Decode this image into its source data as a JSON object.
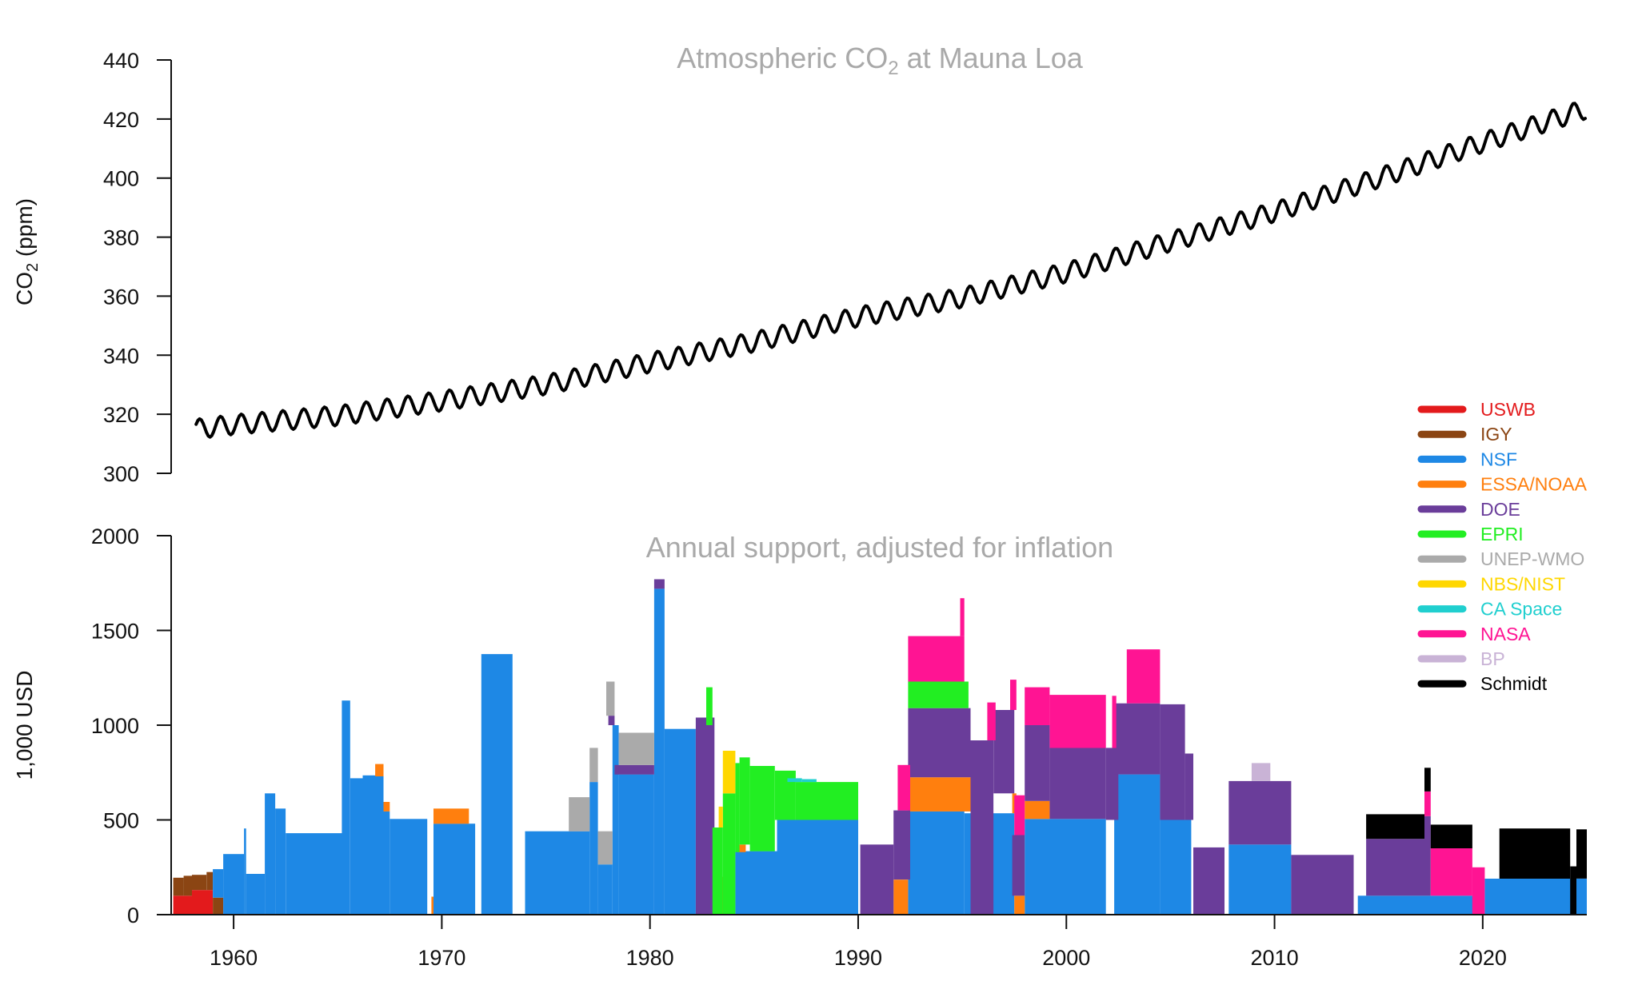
{
  "chart_data": [
    {
      "id": "co2",
      "type": "line",
      "title": "Atmospheric CO",
      "title_sub": "2",
      "title_rest": " at Mauna Loa",
      "ylabel": "CO",
      "ylabel_sub": "2",
      "ylabel_rest": "  (ppm)",
      "xlim": [
        1957,
        2025
      ],
      "ylim": [
        300,
        440
      ],
      "yticks": [
        300,
        320,
        340,
        360,
        380,
        400,
        420,
        440
      ],
      "series": [
        {
          "name": "Mauna Loa CO2 (monthly, seasonal cycle)",
          "color": "#000000",
          "start": 1958.2,
          "end": 2025.0,
          "step": 0.0833,
          "trend_anchors": [
            [
              1958.2,
              315
            ],
            [
              1960,
              316.5
            ],
            [
              1965,
              319.5
            ],
            [
              1970,
              324.5
            ],
            [
              1975,
              330
            ],
            [
              1980,
              337.5
            ],
            [
              1985,
              344.5
            ],
            [
              1990,
              353
            ],
            [
              1995,
              359.5
            ],
            [
              2000,
              368
            ],
            [
              2005,
              378.5
            ],
            [
              2010,
              388.5
            ],
            [
              2015,
              400
            ],
            [
              2020,
              412
            ],
            [
              2025,
              423.5
            ]
          ],
          "seasonal_amplitude_ppm": 3.3,
          "seasonal_peak_month_fraction": 0.37
        }
      ]
    },
    {
      "id": "funding",
      "type": "bar",
      "title": "Annual support, adjusted for inflation",
      "ylabel": "1,000 USD",
      "xlim": [
        1957,
        2025
      ],
      "ylim": [
        0,
        2000
      ],
      "yticks": [
        0,
        500,
        1000,
        1500,
        2000
      ],
      "xticks": [
        1960,
        1970,
        1980,
        1990,
        2000,
        2010,
        2020
      ],
      "xtick_labels": [
        "1960",
        "1970",
        "1980",
        "1990",
        "2000",
        "2010",
        "2020"
      ],
      "series": [
        {
          "name": "USWB",
          "color": "#e31a1c",
          "segments": [
            [
              1957.1,
              1958.0,
              0,
              100
            ],
            [
              1958.0,
              1959.0,
              0,
              130
            ]
          ]
        },
        {
          "name": "IGY",
          "color": "#8b4513",
          "segments": [
            [
              1957.1,
              1957.6,
              100,
              195
            ],
            [
              1957.6,
              1958.0,
              100,
              205
            ],
            [
              1958.0,
              1958.7,
              130,
              210
            ],
            [
              1958.7,
              1959.0,
              130,
              225
            ],
            [
              1959.0,
              1959.5,
              0,
              90
            ]
          ]
        },
        {
          "name": "NSF",
          "color": "#1e88e5",
          "segments": [
            [
              1959.0,
              1959.5,
              90,
              240
            ],
            [
              1959.5,
              1960.5,
              0,
              320
            ],
            [
              1960.5,
              1960.6,
              0,
              455
            ],
            [
              1960.6,
              1961.5,
              0,
              215
            ],
            [
              1961.5,
              1962.0,
              0,
              640
            ],
            [
              1962.0,
              1962.5,
              0,
              560
            ],
            [
              1962.5,
              1965.2,
              0,
              430
            ],
            [
              1965.2,
              1965.6,
              0,
              1130
            ],
            [
              1965.6,
              1966.2,
              0,
              720
            ],
            [
              1966.2,
              1967.2,
              0,
              735
            ],
            [
              1967.2,
              1967.5,
              0,
              545
            ],
            [
              1967.5,
              1969.3,
              0,
              505
            ],
            [
              1969.6,
              1971.6,
              0,
              480
            ],
            [
              1971.9,
              1973.4,
              0,
              1375
            ],
            [
              1974.0,
              1977.1,
              0,
              440
            ],
            [
              1977.1,
              1977.5,
              0,
              700
            ],
            [
              1977.5,
              1978.2,
              0,
              265
            ],
            [
              1978.2,
              1978.5,
              0,
              1000
            ],
            [
              1978.5,
              1980.2,
              0,
              740
            ],
            [
              1980.2,
              1980.7,
              0,
              1720
            ],
            [
              1980.7,
              1982.2,
              0,
              980
            ],
            [
              1984.1,
              1986.1,
              0,
              335
            ],
            [
              1986.1,
              1990.0,
              0,
              500
            ],
            [
              1992.4,
              1995.1,
              0,
              545
            ],
            [
              1995.1,
              1997.5,
              0,
              535
            ],
            [
              1998.0,
              2001.9,
              0,
              505
            ],
            [
              2002.3,
              2004.5,
              0,
              740
            ],
            [
              2004.5,
              2006.0,
              0,
              500
            ],
            [
              2007.8,
              2010.8,
              0,
              370
            ],
            [
              2014.0,
              2019.9,
              0,
              100
            ],
            [
              2020.1,
              2025.0,
              0,
              190
            ]
          ]
        },
        {
          "name": "ESSA/NOAA",
          "color": "#ff7f0e",
          "segments": [
            [
              1966.8,
              1967.2,
              730,
              795
            ],
            [
              1967.2,
              1967.5,
              545,
              595
            ],
            [
              1969.5,
              1969.6,
              0,
              95
            ],
            [
              1969.6,
              1971.3,
              480,
              560
            ],
            [
              1982.9,
              1984.0,
              0,
              200
            ],
            [
              1984.2,
              1984.6,
              330,
              370
            ],
            [
              1991.7,
              1992.4,
              0,
              185
            ],
            [
              1992.4,
              1995.4,
              545,
              725
            ],
            [
              1997.4,
              1997.6,
              535,
              640
            ],
            [
              1997.5,
              1998.0,
              0,
              100
            ],
            [
              1998.0,
              1999.2,
              505,
              600
            ]
          ]
        },
        {
          "name": "DOE",
          "color": "#6a3d9a",
          "segments": [
            [
              1978.0,
              1978.3,
              1000,
              1050
            ],
            [
              1978.3,
              1980.2,
              740,
              790
            ],
            [
              1980.2,
              1980.7,
              1720,
              1770
            ],
            [
              1982.2,
              1983.1,
              0,
              1040
            ],
            [
              1990.1,
              1991.7,
              0,
              370
            ],
            [
              1991.7,
              1992.5,
              185,
              550
            ],
            [
              1992.4,
              1995.4,
              725,
              1090
            ],
            [
              1995.4,
              1996.5,
              0,
              920
            ],
            [
              1996.5,
              1997.5,
              640,
              1080
            ],
            [
              1997.4,
              1998.0,
              100,
              420
            ],
            [
              1998.0,
              1999.2,
              600,
              1000
            ],
            [
              1999.2,
              2001.9,
              505,
              880
            ],
            [
              2001.9,
              2002.5,
              500,
              880
            ],
            [
              2002.3,
              2004.5,
              740,
              1115
            ],
            [
              2004.5,
              2005.7,
              500,
              1110
            ],
            [
              2005.7,
              2006.1,
              500,
              850
            ],
            [
              2006.1,
              2007.6,
              0,
              355
            ],
            [
              2007.8,
              2010.8,
              370,
              705
            ],
            [
              2010.8,
              2013.8,
              0,
              315
            ],
            [
              2014.4,
              2017.2,
              100,
              400
            ],
            [
              2017.2,
              2017.5,
              100,
              520
            ]
          ]
        },
        {
          "name": "EPRI",
          "color": "#22ee22",
          "segments": [
            [
              1982.7,
              1983.0,
              1000,
              1200
            ],
            [
              1983.0,
              1983.5,
              0,
              460
            ],
            [
              1983.5,
              1984.1,
              0,
              640
            ],
            [
              1984.1,
              1984.3,
              330,
              800
            ],
            [
              1984.3,
              1984.8,
              370,
              830
            ],
            [
              1984.8,
              1986.0,
              335,
              785
            ],
            [
              1986.0,
              1987.0,
              500,
              760
            ],
            [
              1987.0,
              1990.0,
              500,
              700
            ],
            [
              1992.4,
              1995.3,
              1090,
              1230
            ]
          ]
        },
        {
          "name": "UNEP-WMO",
          "color": "#aaaaaa",
          "segments": [
            [
              1976.1,
              1977.1,
              440,
              620
            ],
            [
              1977.1,
              1977.5,
              700,
              880
            ],
            [
              1977.5,
              1978.2,
              265,
              440
            ],
            [
              1977.9,
              1978.3,
              1050,
              1230
            ],
            [
              1978.5,
              1980.2,
              790,
              960
            ]
          ]
        },
        {
          "name": "NBS/NIST",
          "color": "#ffd700",
          "segments": [
            [
              1983.5,
              1984.1,
              640,
              865
            ],
            [
              1983.3,
              1983.5,
              460,
              570
            ]
          ]
        },
        {
          "name": "CA Space",
          "color": "#20cfcf",
          "segments": [
            [
              1986.6,
              1987.3,
              700,
              720
            ],
            [
              1987.3,
              1988.0,
              700,
              715
            ]
          ]
        },
        {
          "name": "NASA",
          "color": "#ff1493",
          "segments": [
            [
              1991.9,
              1992.5,
              550,
              790
            ],
            [
              1992.4,
              1995.1,
              1230,
              1470
            ],
            [
              1994.9,
              1995.1,
              1470,
              1670
            ],
            [
              1996.2,
              1996.6,
              920,
              1120
            ],
            [
              1997.5,
              1998.0,
              420,
              630
            ],
            [
              1997.3,
              1997.6,
              1080,
              1240
            ],
            [
              1998.0,
              1999.2,
              1000,
              1200
            ],
            [
              1999.2,
              2001.9,
              880,
              1160
            ],
            [
              2002.2,
              2002.4,
              880,
              1155
            ],
            [
              2002.9,
              2004.5,
              1115,
              1400
            ],
            [
              2017.2,
              2017.5,
              520,
              650
            ],
            [
              2017.5,
              2019.5,
              100,
              350
            ],
            [
              2019.5,
              2020.1,
              0,
              250
            ]
          ]
        },
        {
          "name": "BP",
          "color": "#c9b3d6",
          "segments": [
            [
              2008.9,
              2009.8,
              705,
              800
            ]
          ]
        },
        {
          "name": "Schmidt",
          "color": "#000000",
          "segments": [
            [
              2014.4,
              2017.2,
              400,
              530
            ],
            [
              2017.2,
              2017.5,
              650,
              775
            ],
            [
              2017.5,
              2019.5,
              350,
              475
            ],
            [
              2020.8,
              2024.2,
              190,
              455
            ],
            [
              2024.2,
              2024.5,
              0,
              255
            ],
            [
              2024.5,
              2025.0,
              190,
              450
            ]
          ]
        }
      ],
      "legend": {
        "position": "right, between panels",
        "entries": [
          {
            "label": "USWB",
            "color": "#e31a1c"
          },
          {
            "label": "IGY",
            "color": "#8b4513"
          },
          {
            "label": "NSF",
            "color": "#1e88e5"
          },
          {
            "label": "ESSA/NOAA",
            "color": "#ff7f0e"
          },
          {
            "label": "DOE",
            "color": "#6a3d9a"
          },
          {
            "label": "EPRI",
            "color": "#22ee22"
          },
          {
            "label": "UNEP-WMO",
            "color": "#aaaaaa"
          },
          {
            "label": "NBS/NIST",
            "color": "#ffd700"
          },
          {
            "label": "CA Space",
            "color": "#20cfcf"
          },
          {
            "label": "NASA",
            "color": "#ff1493"
          },
          {
            "label": "BP",
            "color": "#c9b3d6"
          },
          {
            "label": "Schmidt",
            "color": "#000000"
          }
        ]
      }
    }
  ]
}
